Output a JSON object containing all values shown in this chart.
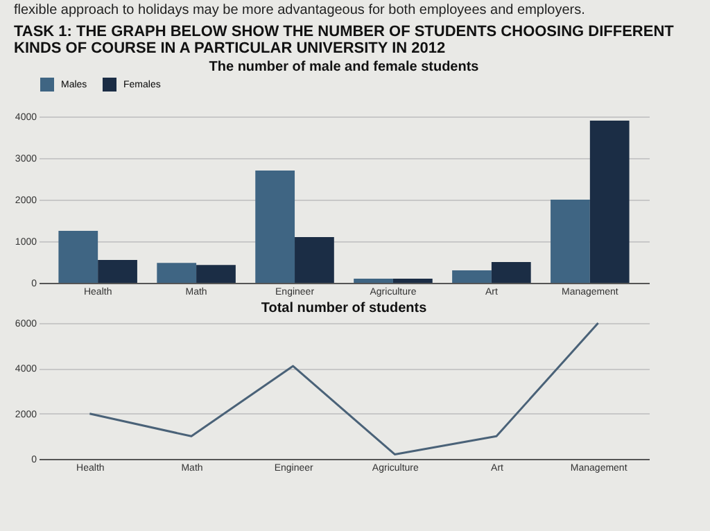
{
  "chart_data": [
    {
      "type": "bar",
      "title": "The number of male and female students",
      "annotations": [
        "flexible approach to holidays may be more advantageous for both employees and employers.",
        "TASK 1: THE GRAPH BELOW SHOW THE NUMBER OF STUDENTS CHOOSING DIFFERENT KINDS OF COURSE IN A PARTICULAR UNIVERSITY IN 2012"
      ],
      "categories": [
        "Health",
        "Math",
        "Engineer",
        "Agriculture",
        "Art",
        "Management"
      ],
      "series": [
        {
          "name": "Males",
          "color": "#3f6583",
          "values": [
            1250,
            480,
            2700,
            100,
            300,
            2000
          ]
        },
        {
          "name": "Females",
          "color": "#1b2d45",
          "values": [
            550,
            430,
            1100,
            100,
            500,
            3900
          ]
        }
      ],
      "ylim": [
        0,
        4000
      ],
      "yticks": [
        0,
        1000,
        2000,
        3000,
        4000
      ],
      "grid": "y",
      "legend": "top"
    },
    {
      "type": "line",
      "title": "Total number of students",
      "categories": [
        "Health",
        "Math",
        "Engineer",
        "Agriculture",
        "Art",
        "Management"
      ],
      "series": [
        {
          "color": "#4a6278",
          "values": [
            2000,
            1000,
            4100,
            200,
            1000,
            6000
          ]
        }
      ],
      "ylim": [
        0,
        6000
      ],
      "yticks": [
        0,
        2000,
        4000,
        6000
      ],
      "grid": "y",
      "marker": "none"
    }
  ]
}
